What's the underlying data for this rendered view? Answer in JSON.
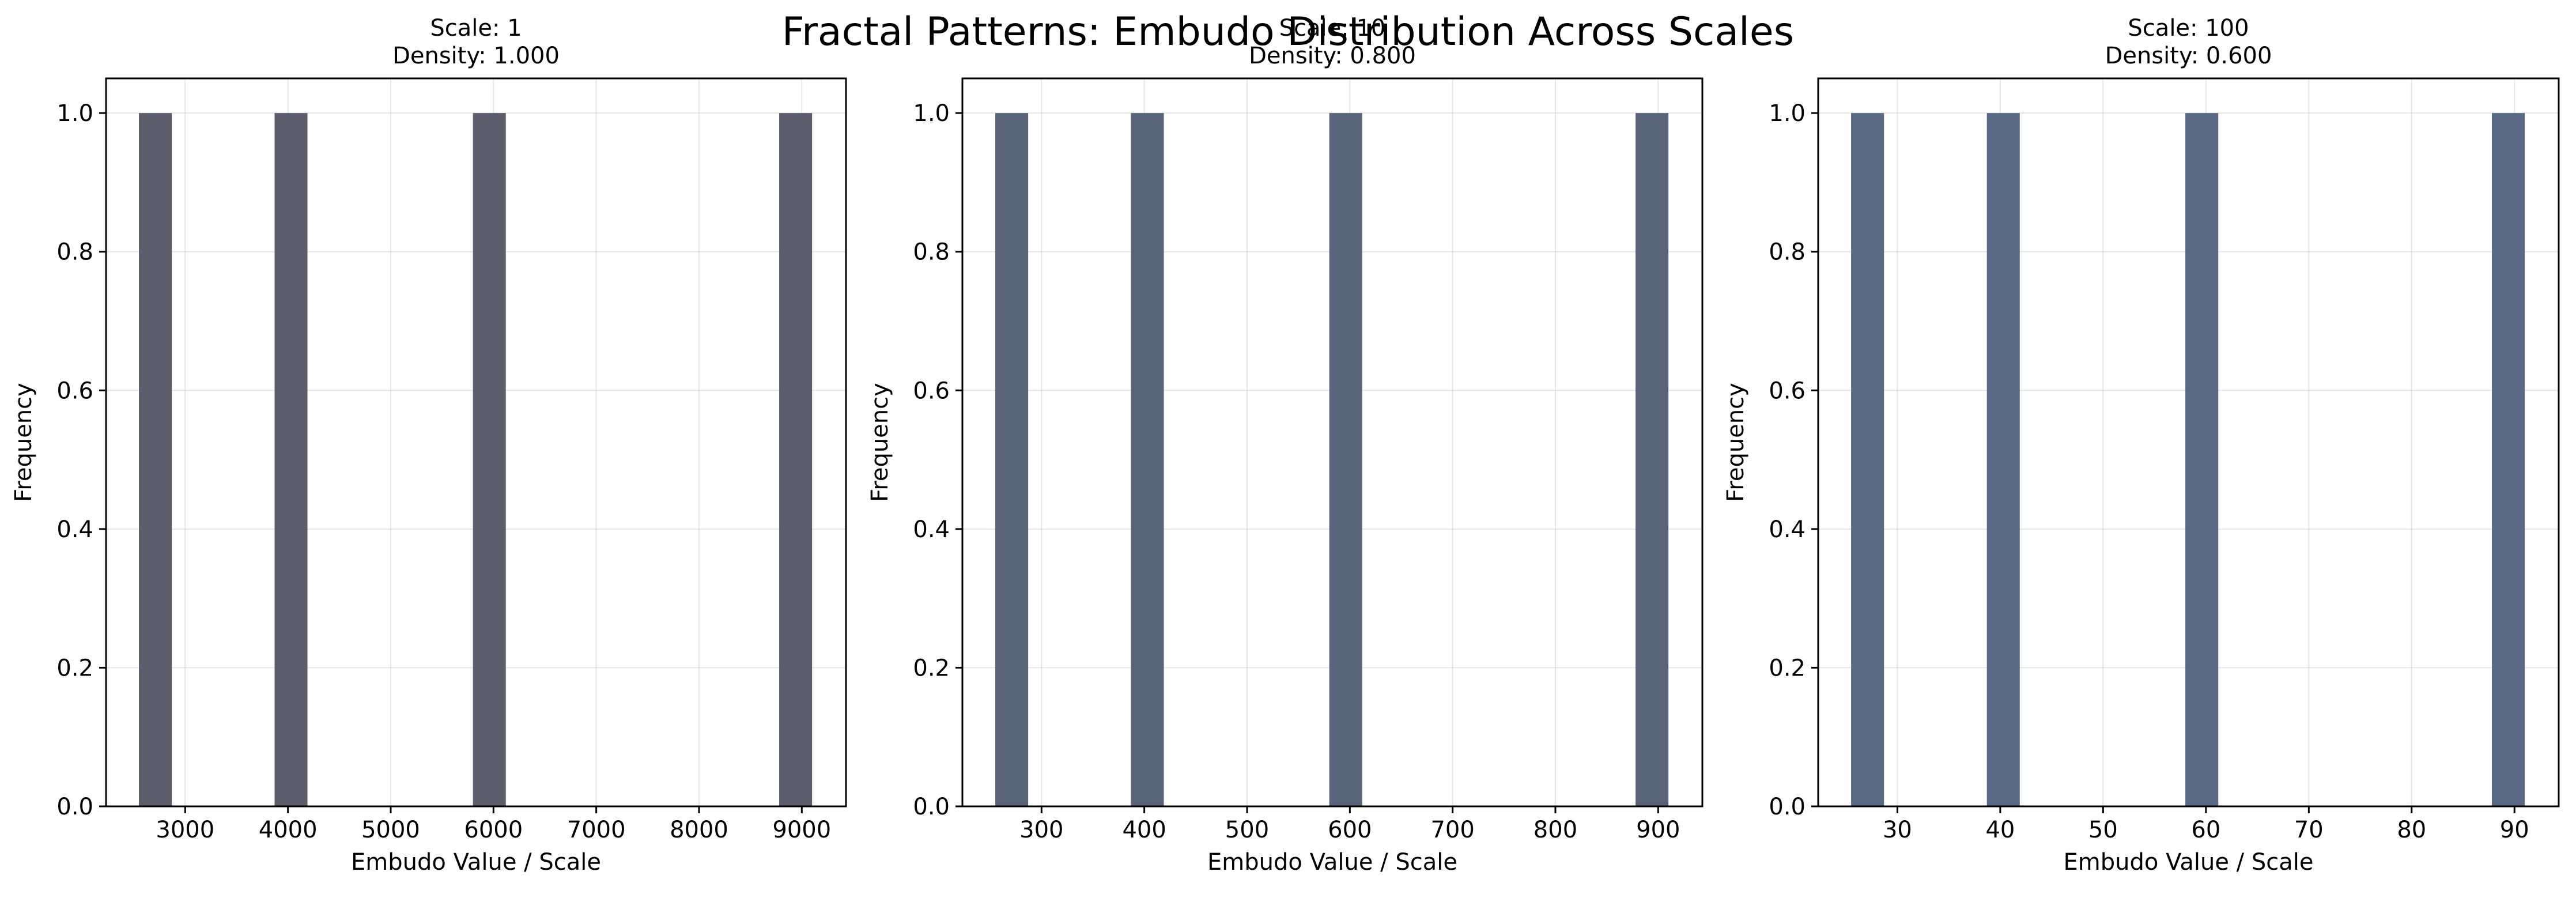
{
  "figure": {
    "suptitle": "Fractal Patterns: Embudo Distribution Across Scales"
  },
  "chart_data": [
    {
      "type": "bar",
      "title_line1": "Scale: 1",
      "title_line2": "Density: 1.000",
      "xlabel": "Embudo Value / Scale",
      "ylabel": "Frequency",
      "xlim": [
        2230,
        9430
      ],
      "ylim": [
        0,
        1.05
      ],
      "xticks": [
        3000,
        4000,
        5000,
        6000,
        7000,
        8000,
        9000
      ],
      "yticks": [
        "0.0",
        "0.2",
        "0.4",
        "0.6",
        "0.8",
        "1.0"
      ],
      "bins": [
        {
          "x0": 2550,
          "x1": 2870,
          "count": 1
        },
        {
          "x0": 3870,
          "x1": 4190,
          "count": 1
        },
        {
          "x0": 5800,
          "x1": 6120,
          "count": 1
        },
        {
          "x0": 8780,
          "x1": 9100,
          "count": 1
        }
      ],
      "bar_color": "#5c5c6b",
      "grid": true
    },
    {
      "type": "bar",
      "title_line1": "Scale: 10",
      "title_line2": "Density: 0.800",
      "xlabel": "Embudo Value / Scale",
      "ylabel": "Frequency",
      "xlim": [
        223,
        943
      ],
      "ylim": [
        0,
        1.05
      ],
      "xticks": [
        300,
        400,
        500,
        600,
        700,
        800,
        900
      ],
      "yticks": [
        "0.0",
        "0.2",
        "0.4",
        "0.6",
        "0.8",
        "1.0"
      ],
      "bins": [
        {
          "x0": 255,
          "x1": 287,
          "count": 1
        },
        {
          "x0": 387,
          "x1": 419,
          "count": 1
        },
        {
          "x0": 580,
          "x1": 612,
          "count": 1
        },
        {
          "x0": 878,
          "x1": 910,
          "count": 1
        }
      ],
      "bar_color": "#5a6478",
      "grid": true
    },
    {
      "type": "bar",
      "title_line1": "Scale: 100",
      "title_line2": "Density: 0.600",
      "xlabel": "Embudo Value / Scale",
      "ylabel": "Frequency",
      "xlim": [
        22.3,
        94.3
      ],
      "ylim": [
        0,
        1.05
      ],
      "xticks": [
        30,
        40,
        50,
        60,
        70,
        80,
        90
      ],
      "yticks": [
        "0.0",
        "0.2",
        "0.4",
        "0.6",
        "0.8",
        "1.0"
      ],
      "bins": [
        {
          "x0": 25.5,
          "x1": 28.7,
          "count": 1
        },
        {
          "x0": 38.7,
          "x1": 41.9,
          "count": 1
        },
        {
          "x0": 58.0,
          "x1": 61.2,
          "count": 1
        },
        {
          "x0": 87.8,
          "x1": 91.0,
          "count": 1
        }
      ],
      "bar_color": "#5a6a85",
      "grid": true
    }
  ]
}
